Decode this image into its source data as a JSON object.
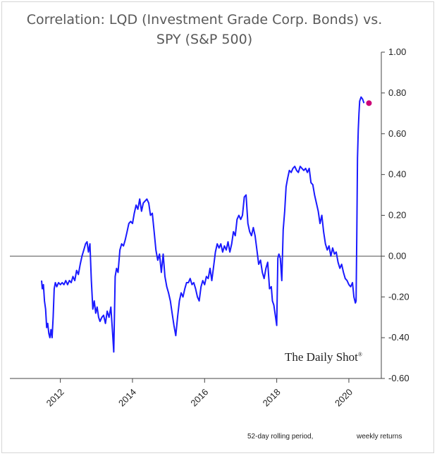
{
  "chart_data": {
    "type": "line",
    "title_line1": "Correlation: LQD (Investment Grade Corp. Bonds) vs.",
    "title_line2": "SPY (S&P 500)",
    "y_ticks": [
      "1.00",
      "0.80",
      "0.60",
      "0.40",
      "0.20",
      "0.00",
      "-0.20",
      "-0.40",
      "-0.60"
    ],
    "y_tick_values": [
      1.0,
      0.8,
      0.6,
      0.4,
      0.2,
      0.0,
      -0.2,
      -0.4,
      -0.6
    ],
    "x_ticks": [
      "2012",
      "2014",
      "2016",
      "2018",
      "2020"
    ],
    "x_tick_values": [
      2012,
      2014,
      2016,
      2018,
      2020
    ],
    "ylim": [
      -0.6,
      1.0
    ],
    "xlim": [
      2010.6,
      2020.9
    ],
    "zero_line": true,
    "grid": false,
    "series": [
      {
        "color": "#1a1aff",
        "x": [
          2011.48,
          2011.5,
          2011.53,
          2011.56,
          2011.59,
          2011.62,
          2011.65,
          2011.68,
          2011.71,
          2011.74,
          2011.77,
          2011.8,
          2011.83,
          2011.86,
          2011.9,
          2011.95,
          2012.0,
          2012.05,
          2012.1,
          2012.15,
          2012.2,
          2012.25,
          2012.3,
          2012.35,
          2012.4,
          2012.45,
          2012.5,
          2012.55,
          2012.6,
          2012.65,
          2012.7,
          2012.74,
          2012.78,
          2012.82,
          2012.86,
          2012.9,
          2012.94,
          2012.98,
          2013.02,
          2013.06,
          2013.1,
          2013.15,
          2013.2,
          2013.25,
          2013.3,
          2013.35,
          2013.4,
          2013.45,
          2013.48,
          2013.52,
          2013.56,
          2013.6,
          2013.65,
          2013.7,
          2013.75,
          2013.8,
          2013.85,
          2013.9,
          2013.95,
          2014.0,
          2014.05,
          2014.1,
          2014.15,
          2014.2,
          2014.25,
          2014.3,
          2014.35,
          2014.4,
          2014.45,
          2014.5,
          2014.55,
          2014.6,
          2014.65,
          2014.7,
          2014.75,
          2014.8,
          2014.85,
          2014.9,
          2014.95,
          2015.0,
          2015.05,
          2015.1,
          2015.15,
          2015.2,
          2015.25,
          2015.3,
          2015.35,
          2015.4,
          2015.45,
          2015.5,
          2015.55,
          2015.6,
          2015.65,
          2015.7,
          2015.75,
          2015.8,
          2015.85,
          2015.9,
          2015.95,
          2016.0,
          2016.05,
          2016.1,
          2016.15,
          2016.2,
          2016.25,
          2016.3,
          2016.35,
          2016.4,
          2016.45,
          2016.5,
          2016.55,
          2016.6,
          2016.65,
          2016.7,
          2016.75,
          2016.8,
          2016.85,
          2016.9,
          2016.95,
          2017.0,
          2017.05,
          2017.1,
          2017.15,
          2017.2,
          2017.25,
          2017.3,
          2017.35,
          2017.4,
          2017.45,
          2017.5,
          2017.55,
          2017.6,
          2017.65,
          2017.7,
          2017.75,
          2017.8,
          2017.85,
          2017.88,
          2017.92,
          2017.96,
          2018.0,
          2018.03,
          2018.06,
          2018.1,
          2018.14,
          2018.18,
          2018.22,
          2018.26,
          2018.3,
          2018.35,
          2018.4,
          2018.45,
          2018.5,
          2018.55,
          2018.6,
          2018.65,
          2018.7,
          2018.75,
          2018.8,
          2018.85,
          2018.9,
          2018.95,
          2019.0,
          2019.05,
          2019.1,
          2019.15,
          2019.2,
          2019.25,
          2019.3,
          2019.35,
          2019.4,
          2019.45,
          2019.5,
          2019.55,
          2019.6,
          2019.65,
          2019.7,
          2019.75,
          2019.8,
          2019.85,
          2019.9,
          2019.95,
          2020.0,
          2020.05,
          2020.1,
          2020.14,
          2020.18,
          2020.2,
          2020.22,
          2020.24,
          2020.26,
          2020.28,
          2020.3,
          2020.34,
          2020.38,
          2020.42
        ],
        "values": [
          -0.12,
          -0.16,
          -0.14,
          -0.22,
          -0.26,
          -0.35,
          -0.33,
          -0.38,
          -0.4,
          -0.36,
          -0.4,
          -0.3,
          -0.16,
          -0.13,
          -0.15,
          -0.13,
          -0.14,
          -0.13,
          -0.14,
          -0.12,
          -0.14,
          -0.12,
          -0.13,
          -0.1,
          -0.12,
          -0.07,
          -0.09,
          -0.04,
          0.0,
          0.03,
          0.06,
          0.07,
          0.02,
          0.06,
          -0.12,
          -0.26,
          -0.22,
          -0.28,
          -0.25,
          -0.3,
          -0.32,
          -0.3,
          -0.29,
          -0.33,
          -0.27,
          -0.3,
          -0.25,
          -0.38,
          -0.47,
          -0.1,
          -0.06,
          -0.08,
          0.03,
          0.06,
          0.05,
          0.08,
          0.12,
          0.16,
          0.17,
          0.16,
          0.21,
          0.25,
          0.23,
          0.28,
          0.22,
          0.26,
          0.27,
          0.28,
          0.26,
          0.2,
          0.21,
          0.12,
          0.03,
          -0.02,
          0.01,
          -0.08,
          0.01,
          -0.1,
          -0.15,
          -0.18,
          -0.22,
          -0.28,
          -0.34,
          -0.39,
          -0.3,
          -0.22,
          -0.18,
          -0.2,
          -0.16,
          -0.13,
          -0.13,
          -0.11,
          -0.14,
          -0.13,
          -0.16,
          -0.2,
          -0.22,
          -0.15,
          -0.12,
          -0.14,
          -0.1,
          -0.11,
          -0.06,
          -0.12,
          -0.05,
          0.02,
          0.06,
          0.04,
          0.06,
          0.02,
          0.05,
          0.03,
          0.07,
          0.02,
          0.06,
          0.12,
          0.1,
          0.18,
          0.2,
          0.18,
          0.2,
          0.29,
          0.3,
          0.16,
          0.12,
          0.1,
          0.14,
          0.1,
          0.03,
          -0.04,
          -0.02,
          -0.08,
          -0.11,
          -0.06,
          -0.03,
          -0.16,
          -0.15,
          -0.22,
          -0.24,
          -0.29,
          -0.34,
          -0.01,
          0.01,
          -0.01,
          -0.12,
          0.13,
          0.22,
          0.34,
          0.38,
          0.42,
          0.41,
          0.43,
          0.44,
          0.42,
          0.41,
          0.44,
          0.43,
          0.42,
          0.43,
          0.41,
          0.43,
          0.36,
          0.35,
          0.3,
          0.26,
          0.22,
          0.16,
          0.2,
          0.12,
          0.06,
          0.03,
          0.05,
          0.0,
          0.04,
          0.01,
          0.02,
          -0.03,
          -0.06,
          -0.04,
          -0.08,
          -0.11,
          -0.12,
          -0.14,
          -0.15,
          -0.13,
          -0.2,
          -0.23,
          -0.22,
          0.1,
          0.48,
          0.62,
          0.7,
          0.76,
          0.78,
          0.77,
          0.75
        ],
        "end_marker": {
          "x": 2020.42,
          "value": 0.75,
          "color": "#cc0077"
        }
      }
    ],
    "brand": "The Daily Shot",
    "brand_mark": "®",
    "footnote_left": "52-day rolling period,",
    "footnote_right": "weekly returns"
  }
}
